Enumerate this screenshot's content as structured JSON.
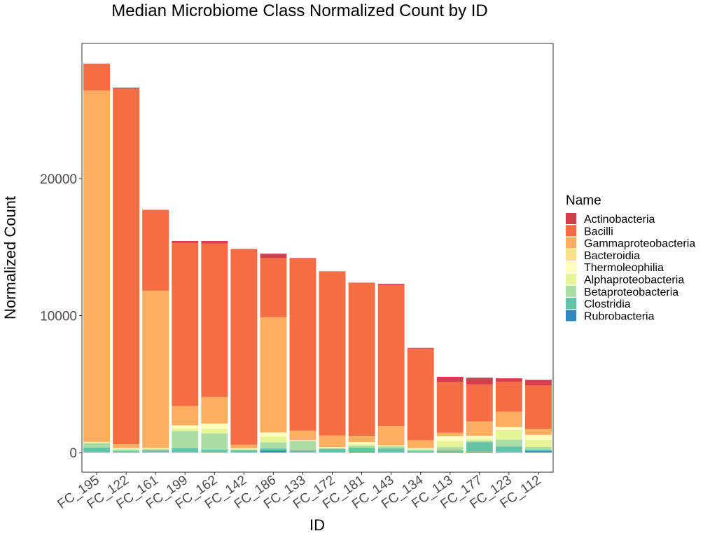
{
  "chart_data": {
    "type": "bar",
    "stacked": true,
    "title": "Median Microbiome Class Normalized Count by ID",
    "xlabel": "ID",
    "ylabel": "Normalized Count",
    "ylim": [
      -1400,
      29600
    ],
    "yticks": [
      0,
      10000,
      20000
    ],
    "grid": false,
    "legend": {
      "title": "Name",
      "position": "right"
    },
    "categories": [
      "FC_195",
      "FC_122",
      "FC_161",
      "FC_199",
      "FC_162",
      "FC_142",
      "FC_186",
      "FC_133",
      "FC_172",
      "FC_181",
      "FC_143",
      "FC_134",
      "FC_113",
      "FC_177",
      "FC_123",
      "FC_112"
    ],
    "series": [
      {
        "name": "Rubrobacteria",
        "color": "#3288bd",
        "values": [
          20,
          20,
          20,
          20,
          20,
          20,
          150,
          20,
          20,
          50,
          20,
          20,
          50,
          60,
          30,
          100
        ]
      },
      {
        "name": "Clostridia",
        "color": "#66c2a5",
        "values": [
          350,
          100,
          150,
          300,
          180,
          150,
          150,
          150,
          250,
          300,
          280,
          100,
          100,
          700,
          420,
          100
        ]
      },
      {
        "name": "Betaproteobacteria",
        "color": "#abdda4",
        "values": [
          320,
          80,
          80,
          1250,
          1200,
          50,
          450,
          650,
          50,
          150,
          150,
          80,
          250,
          100,
          500,
          220
        ]
      },
      {
        "name": "Alphaproteobacteria",
        "color": "#e6f598",
        "values": [
          50,
          100,
          50,
          200,
          350,
          50,
          400,
          50,
          50,
          100,
          50,
          80,
          450,
          150,
          700,
          500
        ]
      },
      {
        "name": "Thermoleophilia",
        "color": "#ffffbf",
        "values": [
          20,
          20,
          20,
          200,
          350,
          20,
          300,
          20,
          20,
          150,
          20,
          20,
          350,
          200,
          200,
          350
        ]
      },
      {
        "name": "Bacteroidia",
        "color": "#fee08b",
        "values": [
          20,
          20,
          20,
          20,
          20,
          20,
          20,
          20,
          20,
          20,
          20,
          20,
          20,
          20,
          20,
          20
        ]
      },
      {
        "name": "Gammaproteobacteria",
        "color": "#fdae61",
        "values": [
          25650,
          270,
          11480,
          1410,
          1930,
          260,
          8410,
          690,
          840,
          450,
          1400,
          580,
          230,
          1040,
          1110,
          450
        ]
      },
      {
        "name": "Bacilli",
        "color": "#f46d43",
        "values": [
          1950,
          25950,
          5880,
          11900,
          11200,
          14280,
          4320,
          12550,
          11960,
          11170,
          10270,
          6690,
          3700,
          2700,
          2190,
          3170
        ]
      },
      {
        "name": "Actinobacteria",
        "color": "#d53e4f",
        "values": [
          20,
          80,
          20,
          150,
          200,
          20,
          320,
          50,
          20,
          20,
          100,
          50,
          380,
          500,
          250,
          400
        ]
      }
    ],
    "legend_order": [
      "Actinobacteria",
      "Bacilli",
      "Gammaproteobacteria",
      "Bacteroidia",
      "Thermoleophilia",
      "Alphaproteobacteria",
      "Betaproteobacteria",
      "Clostridia",
      "Rubrobacteria"
    ]
  }
}
